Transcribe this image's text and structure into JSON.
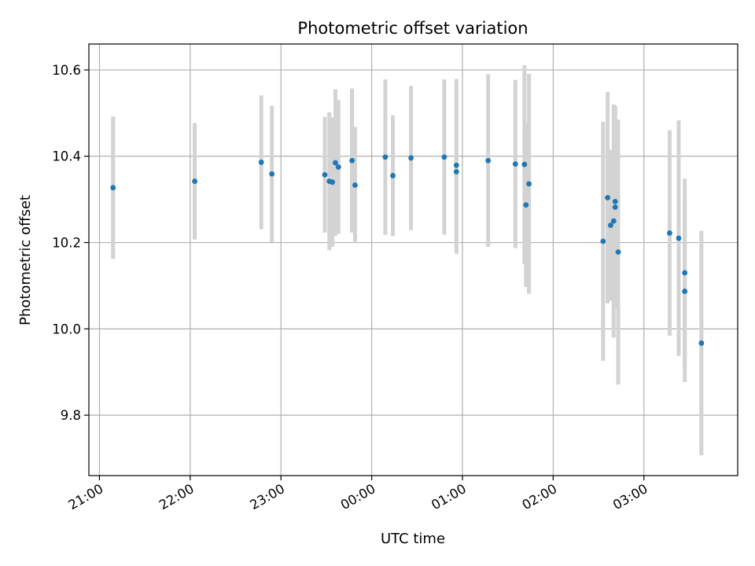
{
  "chart_data": {
    "type": "scatter",
    "title": "Photometric offset variation",
    "xlabel": "UTC time",
    "ylabel": "Photometric offset",
    "x_ticks": [
      {
        "label": "21:00",
        "t": 1260
      },
      {
        "label": "22:00",
        "t": 1320
      },
      {
        "label": "23:00",
        "t": 1380
      },
      {
        "label": "00:00",
        "t": 1440
      },
      {
        "label": "01:00",
        "t": 1500
      },
      {
        "label": "02:00",
        "t": 1560
      },
      {
        "label": "03:00",
        "t": 1620
      }
    ],
    "xlim_time": [
      "20:53",
      "04:02"
    ],
    "y_ticks": [
      9.8,
      10.0,
      10.2,
      10.4,
      10.6
    ],
    "ylim": [
      9.66,
      10.66
    ],
    "grid": true,
    "colors": {
      "marker": "#1f77b4",
      "errorbar": "#d3d3d3",
      "grid": "#b0b0b0"
    },
    "points": [
      {
        "time": "21:09",
        "y": 10.327,
        "err": 0.165
      },
      {
        "time": "22:03",
        "y": 10.342,
        "err": 0.135
      },
      {
        "time": "22:47",
        "y": 10.386,
        "err": 0.155
      },
      {
        "time": "22:54",
        "y": 10.359,
        "err": 0.158
      },
      {
        "time": "23:29",
        "y": 10.357,
        "err": 0.134
      },
      {
        "time": "23:32",
        "y": 10.342,
        "err": 0.16
      },
      {
        "time": "23:34",
        "y": 10.34,
        "err": 0.15
      },
      {
        "time": "23:36",
        "y": 10.385,
        "err": 0.17
      },
      {
        "time": "23:38",
        "y": 10.375,
        "err": 0.155
      },
      {
        "time": "23:47",
        "y": 10.39,
        "err": 0.167
      },
      {
        "time": "23:49",
        "y": 10.333,
        "err": 0.135
      },
      {
        "time": "00:09",
        "y": 10.398,
        "err": 0.18
      },
      {
        "time": "00:14",
        "y": 10.355,
        "err": 0.14
      },
      {
        "time": "00:26",
        "y": 10.396,
        "err": 0.167
      },
      {
        "time": "00:48",
        "y": 10.398,
        "err": 0.18
      },
      {
        "time": "00:56",
        "y": 10.379,
        "err": 0.2
      },
      {
        "time": "00:56",
        "y": 10.364,
        "err": 0.19
      },
      {
        "time": "01:17",
        "y": 10.39,
        "err": 0.2
      },
      {
        "time": "01:35",
        "y": 10.382,
        "err": 0.195
      },
      {
        "time": "01:41",
        "y": 10.381,
        "err": 0.23
      },
      {
        "time": "01:42",
        "y": 10.287,
        "err": 0.19
      },
      {
        "time": "01:44",
        "y": 10.336,
        "err": 0.255
      },
      {
        "time": "02:33",
        "y": 10.203,
        "err": 0.277
      },
      {
        "time": "02:36",
        "y": 10.304,
        "err": 0.245
      },
      {
        "time": "02:38",
        "y": 10.24,
        "err": 0.175
      },
      {
        "time": "02:40",
        "y": 10.25,
        "err": 0.27
      },
      {
        "time": "02:41",
        "y": 10.295,
        "err": 0.22
      },
      {
        "time": "02:41",
        "y": 10.282,
        "err": 0.235
      },
      {
        "time": "02:43",
        "y": 10.178,
        "err": 0.307
      },
      {
        "time": "03:17",
        "y": 10.222,
        "err": 0.238
      },
      {
        "time": "03:23",
        "y": 10.21,
        "err": 0.273
      },
      {
        "time": "03:27",
        "y": 10.13,
        "err": 0.218
      },
      {
        "time": "03:27",
        "y": 10.087,
        "err": 0.21
      },
      {
        "time": "03:38",
        "y": 9.967,
        "err": 0.26
      }
    ]
  }
}
